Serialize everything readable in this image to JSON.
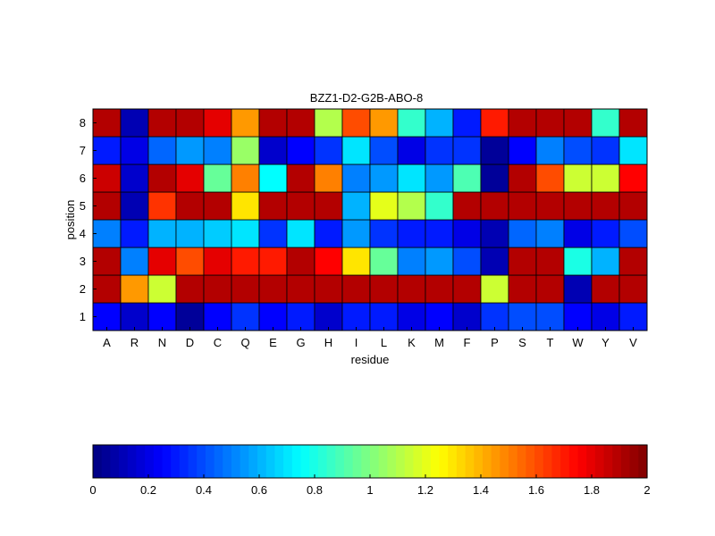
{
  "chart_data": {
    "type": "heatmap",
    "title": "BZZ1-D2-G2B-ABO-8",
    "xlabel": "residue",
    "ylabel": "position",
    "x_categories": [
      "A",
      "R",
      "N",
      "D",
      "C",
      "Q",
      "E",
      "G",
      "H",
      "I",
      "L",
      "K",
      "M",
      "F",
      "P",
      "S",
      "T",
      "W",
      "Y",
      "V"
    ],
    "y_categories": [
      "1",
      "2",
      "3",
      "4",
      "5",
      "6",
      "7",
      "8"
    ],
    "values": [
      [
        0.25,
        0.15,
        0.25,
        0.05,
        0.25,
        0.35,
        0.25,
        0.3,
        0.15,
        0.3,
        0.3,
        0.2,
        0.25,
        0.15,
        0.35,
        0.4,
        0.4,
        0.25,
        0.2,
        0.3
      ],
      [
        1.9,
        1.45,
        1.15,
        1.9,
        1.9,
        1.9,
        1.9,
        1.9,
        1.9,
        1.9,
        1.9,
        1.9,
        1.9,
        1.9,
        1.15,
        1.9,
        1.9,
        0.1,
        1.9,
        1.9
      ],
      [
        1.9,
        0.5,
        1.8,
        1.6,
        1.8,
        1.7,
        1.7,
        1.9,
        1.75,
        1.3,
        0.95,
        0.5,
        0.55,
        0.4,
        0.1,
        1.9,
        1.9,
        0.8,
        0.6,
        1.9
      ],
      [
        0.5,
        0.3,
        0.6,
        0.6,
        0.65,
        0.7,
        0.35,
        0.7,
        0.3,
        0.55,
        0.35,
        0.3,
        0.3,
        0.2,
        0.1,
        0.45,
        0.5,
        0.2,
        0.3,
        0.4
      ],
      [
        1.9,
        0.1,
        1.65,
        1.9,
        1.9,
        1.3,
        1.9,
        1.9,
        1.9,
        0.6,
        1.2,
        1.1,
        0.85,
        1.9,
        1.9,
        1.9,
        1.9,
        1.9,
        1.9,
        1.9
      ],
      [
        1.85,
        0.15,
        1.9,
        1.8,
        0.95,
        1.5,
        0.75,
        1.9,
        1.5,
        0.5,
        0.55,
        0.7,
        0.55,
        0.9,
        0.05,
        1.9,
        1.6,
        1.15,
        1.15,
        1.75
      ],
      [
        0.3,
        0.2,
        0.45,
        0.55,
        0.5,
        1.05,
        0.15,
        0.25,
        0.35,
        0.7,
        0.4,
        0.2,
        0.35,
        0.35,
        0.05,
        0.25,
        0.5,
        0.4,
        0.35,
        0.7
      ],
      [
        1.9,
        0.1,
        1.9,
        1.9,
        1.8,
        1.45,
        1.9,
        1.9,
        1.1,
        1.6,
        1.45,
        0.85,
        0.6,
        0.3,
        1.7,
        1.9,
        1.9,
        1.9,
        0.85,
        1.9
      ]
    ],
    "colormap": "jet",
    "clim": [
      0,
      2
    ],
    "colorbar_ticks": [
      "0",
      "0.2",
      "0.4",
      "0.6",
      "0.8",
      "1",
      "1.2",
      "1.4",
      "1.6",
      "1.8",
      "2"
    ],
    "colorbar_placement": "bottom",
    "grid": false
  }
}
